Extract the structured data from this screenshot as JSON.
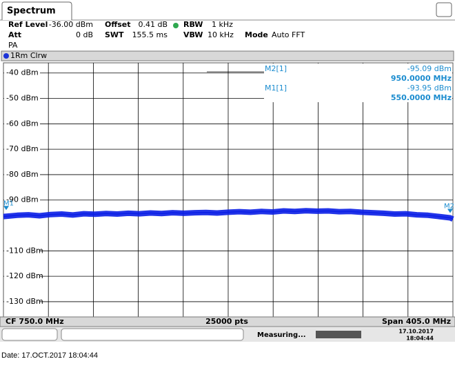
{
  "header": {
    "tab": "Spectrum",
    "ref_level_label": "Ref Level",
    "ref_level": "-36.00 dBm",
    "offset_label": "Offset",
    "offset": "0.41 dB",
    "rbw_label": "RBW",
    "rbw": "1 kHz",
    "att_label": "Att",
    "att": "0 dB",
    "swt_label": "SWT",
    "swt": "155.5 ms",
    "vbw_label": "VBW",
    "vbw": "10 kHz",
    "mode_label": "Mode",
    "mode": "Auto FFT",
    "input": "PA"
  },
  "chart_data": {
    "type": "line",
    "x": [
      547.5,
      560,
      570,
      580,
      590,
      600,
      610,
      620,
      630,
      640,
      650,
      660,
      670,
      680,
      690,
      700,
      710,
      720,
      730,
      740,
      750,
      760,
      770,
      780,
      790,
      800,
      810,
      820,
      830,
      840,
      850,
      860,
      870,
      880,
      890,
      900,
      910,
      920,
      930,
      940,
      950,
      952.5
    ],
    "series": [
      {
        "name": "1Rm Clrw",
        "color": "#0a1ee6",
        "values": [
          -96.5,
          -96,
          -95.8,
          -96.2,
          -95.7,
          -95.5,
          -95.9,
          -95.4,
          -95.6,
          -95.3,
          -95.5,
          -95.2,
          -95.4,
          -95.1,
          -95.3,
          -95.0,
          -95.2,
          -95.0,
          -94.9,
          -95.1,
          -94.8,
          -94.6,
          -94.8,
          -94.5,
          -94.7,
          -94.3,
          -94.5,
          -94.2,
          -94.4,
          -94.3,
          -94.6,
          -94.5,
          -94.8,
          -95.0,
          -95.2,
          -95.5,
          -95.4,
          -95.8,
          -96.0,
          -96.5,
          -97.0,
          -97.5
        ]
      }
    ],
    "xlim": [
      547.5,
      952.5
    ],
    "ylim": [
      -136,
      -36
    ],
    "yticks": [
      {
        "value": -40,
        "label": "-40 dBm"
      },
      {
        "value": -50,
        "label": "-50 dBm"
      },
      {
        "value": -60,
        "label": "-60 dBm"
      },
      {
        "value": -70,
        "label": "-70 dBm"
      },
      {
        "value": -80,
        "label": "-80 dBm"
      },
      {
        "value": -90,
        "label": "-90 dBm"
      },
      {
        "value": -110,
        "label": "-110 dBm"
      },
      {
        "value": -120,
        "label": "-120 dBm"
      },
      {
        "value": -130,
        "label": "-130 dBm"
      }
    ],
    "grid": true,
    "markers": [
      {
        "label": "M2[1]",
        "tag": "M2",
        "x": 950,
        "y": -95.09,
        "value_label": "-95.09 dBm",
        "freq_label": "950.0000 MHz"
      },
      {
        "label": "M1[1]",
        "tag": "M1",
        "x": 550,
        "y": -93.95,
        "value_label": "-93.95 dBm",
        "freq_label": "550.0000 MHz"
      }
    ]
  },
  "footer": {
    "cf": "CF 750.0 MHz",
    "points": "25000 pts",
    "span": "Span 405.0 MHz"
  },
  "status": {
    "measuring": "Measuring...",
    "date": "17.10.2017",
    "time": "18:04:44"
  },
  "date_line": "Date: 17.OCT.2017 18:04:44"
}
